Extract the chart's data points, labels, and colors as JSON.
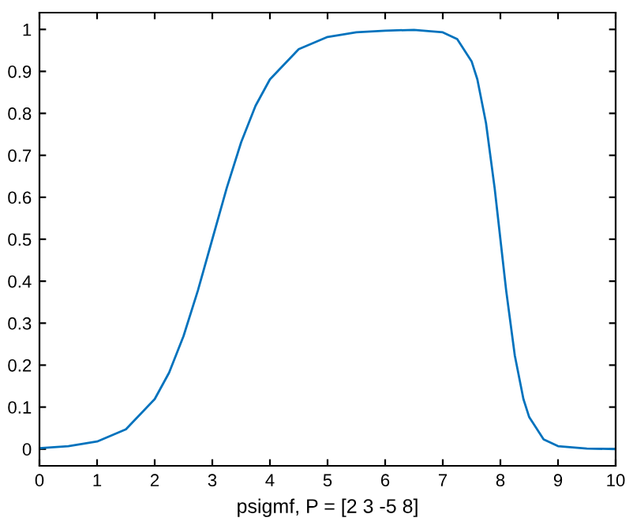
{
  "chart_data": {
    "type": "line",
    "xlabel": "psigmf, P = [2 3 -5 8]",
    "series": [
      {
        "color": "#0072bd",
        "x": [
          0,
          0.5,
          1,
          1.5,
          2,
          2.25,
          2.5,
          2.75,
          3,
          3.25,
          3.5,
          3.75,
          4,
          4.5,
          5,
          5.5,
          6,
          6.5,
          7,
          7.25,
          7.5,
          7.6,
          7.75,
          7.9,
          8,
          8.1,
          8.25,
          8.4,
          8.5,
          8.75,
          9,
          9.5,
          10
        ],
        "values": [
          0.002,
          0.007,
          0.018,
          0.047,
          0.119,
          0.182,
          0.269,
          0.378,
          0.5,
          0.622,
          0.731,
          0.818,
          0.881,
          0.953,
          0.982,
          0.993,
          0.997,
          0.999,
          0.993,
          0.977,
          0.924,
          0.881,
          0.777,
          0.622,
          0.5,
          0.378,
          0.223,
          0.119,
          0.076,
          0.023,
          0.007,
          0.001,
          0
        ]
      }
    ],
    "xlim": [
      0,
      10
    ],
    "xticks": [
      0,
      1,
      2,
      3,
      4,
      5,
      6,
      7,
      8,
      9,
      10
    ],
    "ylim": [
      -0.04,
      1.04
    ],
    "yticks": [
      0,
      0.1,
      0.2,
      0.3,
      0.4,
      0.5,
      0.6,
      0.7,
      0.8,
      0.9,
      1
    ],
    "grid": false,
    "legend": false,
    "line_style": "solid",
    "marker": "none"
  }
}
